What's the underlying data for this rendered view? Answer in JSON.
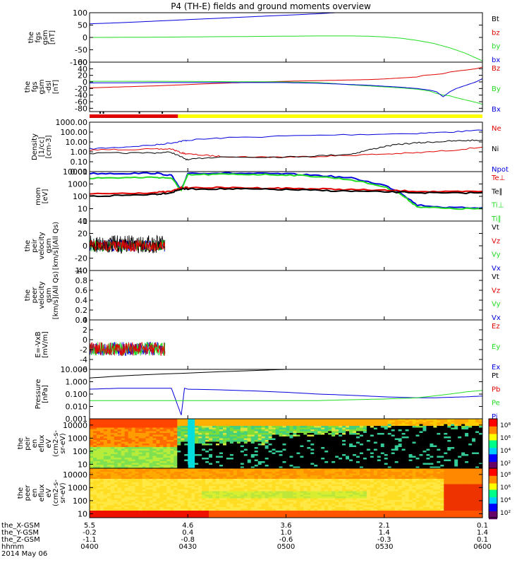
{
  "title": "P4 (TH-E) fields and ground moments overview",
  "colors": {
    "black": "#000000",
    "red": "#e00000",
    "green": "#22dd22",
    "blue": "#0000dd",
    "yellow": "#ffff00"
  },
  "chart_data": {
    "type": "line",
    "time_labels": [
      "0400",
      "0430",
      "0500",
      "0530",
      "0600"
    ],
    "time_range": [
      "0400",
      "0600"
    ],
    "footer": {
      "rows": [
        {
          "label": "the_X-GSM",
          "values": [
            "5.5",
            "4.6",
            "3.6",
            "2.1",
            "0.1"
          ]
        },
        {
          "label": "the_Y-GSM",
          "values": [
            "-0.2",
            "0.4",
            "1.0",
            "1.4",
            "1.4"
          ]
        },
        {
          "label": "the_Z-GSM",
          "values": [
            "-1.1",
            "-0.8",
            "-0.6",
            "-0.3",
            "0.1"
          ]
        },
        {
          "label": "hhmm",
          "values": [
            "0400",
            "0430",
            "0500",
            "0530",
            "0600"
          ]
        }
      ],
      "date": "2014 May 06"
    },
    "panels": [
      {
        "ylabel": [
          "the",
          "fgs",
          "gsm",
          "[nT]"
        ],
        "ylim": [
          -100,
          100
        ],
        "log": false,
        "ticks": [
          "100",
          "50",
          "0",
          "-50",
          "-100"
        ],
        "tick_vals": [
          100,
          50,
          0,
          -50,
          -100
        ],
        "legend": [
          {
            "name": "Bt",
            "color": "#000000"
          },
          {
            "name": "bz",
            "color": "#e00000"
          },
          {
            "name": "by",
            "color": "#22dd22"
          },
          {
            "name": "bx",
            "color": "#0000dd"
          }
        ],
        "series": [
          {
            "name": "bx",
            "color": "#0000dd",
            "x": [
              0,
              10,
              20,
              30,
              40,
              50,
              60,
              70,
              75,
              80
            ],
            "y": [
              55,
              60,
              66,
              72,
              78,
              84,
              90,
              96,
              100,
              105
            ]
          },
          {
            "name": "by",
            "color": "#22dd22",
            "x": [
              0,
              20,
              40,
              60,
              70,
              80,
              85,
              90,
              95,
              100,
              105,
              110,
              115,
              120
            ],
            "y": [
              0,
              1,
              3,
              5,
              6,
              6,
              5,
              2,
              -3,
              -12,
              -24,
              -42,
              -65,
              -95
            ]
          }
        ]
      },
      {
        "ylabel": [
          "the",
          "fgs",
          "gsm",
          "-dsl",
          "[nT]"
        ],
        "ylim": [
          -90,
          60
        ],
        "log": false,
        "ticks": [
          "60",
          "40",
          "20",
          "0",
          "-20",
          "-40",
          "-60",
          "-80"
        ],
        "tick_vals": [
          60,
          40,
          20,
          0,
          -20,
          -40,
          -60,
          -80
        ],
        "legend": [
          {
            "name": "Bz",
            "color": "#e00000"
          },
          {
            "name": "By",
            "color": "#22dd22"
          },
          {
            "name": "Bx",
            "color": "#0000dd"
          }
        ],
        "series": [
          {
            "name": "Bz",
            "color": "#e00000",
            "x": [
              0,
              10,
              20,
              30,
              40,
              50,
              60,
              70,
              75,
              80,
              85,
              90,
              95,
              100,
              102,
              105,
              108,
              110,
              113,
              115,
              118,
              120
            ],
            "y": [
              -18,
              -15,
              -12,
              -8,
              -4,
              -1,
              2,
              4,
              5,
              6,
              7,
              9,
              12,
              15,
              20,
              22,
              25,
              30,
              34,
              36,
              40,
              45
            ]
          },
          {
            "name": "By",
            "color": "#22dd22",
            "x": [
              0,
              20,
              40,
              60,
              70,
              75,
              80,
              85,
              90,
              95,
              100,
              104,
              106,
              108,
              110,
              112,
              115,
              118,
              120
            ],
            "y": [
              2,
              2,
              1,
              0,
              -2,
              -5,
              -9,
              -12,
              -15,
              -18,
              -22,
              -28,
              -35,
              -40,
              -42,
              -48,
              -55,
              -62,
              -68
            ]
          },
          {
            "name": "Bx",
            "color": "#0000dd",
            "x": [
              0,
              20,
              40,
              60,
              70,
              75,
              80,
              85,
              90,
              95,
              100,
              104,
              106,
              108,
              110,
              112,
              115,
              118,
              120
            ],
            "y": [
              -3,
              -2,
              -2,
              -2,
              -4,
              -6,
              -8,
              -10,
              -13,
              -16,
              -20,
              -25,
              -30,
              -45,
              -30,
              -20,
              -10,
              0,
              10
            ]
          }
        ]
      },
      {
        "ylabel": [
          "Density",
          "[1/cc]",
          "[cm-3]"
        ],
        "ylim": [
          0.01,
          1000
        ],
        "log": true,
        "ticks": [
          "1000.00",
          "100.00",
          "10.00",
          "1.00",
          "0.10",
          "0.01"
        ],
        "tick_vals": [
          1000,
          100,
          10,
          1,
          0.1,
          0.01
        ],
        "legend": [
          {
            "name": "Ne",
            "color": "#e00000"
          },
          {
            "name": "Ni",
            "color": "#000000"
          },
          {
            "name": "Npot",
            "color": "#0000dd"
          }
        ],
        "series": [
          {
            "name": "Npot",
            "color": "#0000dd",
            "x": [
              0,
              10,
              20,
              25,
              28,
              30,
              40,
              60,
              80,
              100,
              110,
              120
            ],
            "y": [
              2,
              3,
              5,
              8,
              12,
              15,
              25,
              40,
              55,
              75,
              100,
              150
            ]
          },
          {
            "name": "Ne",
            "color": "#e00000",
            "x": [
              0,
              10,
              20,
              25,
              28,
              30,
              35,
              40,
              50,
              60,
              70,
              80,
              90,
              100,
              110,
              120
            ],
            "y": [
              1.5,
              1.8,
              1.8,
              2,
              0.8,
              0.6,
              0.45,
              0.35,
              0.3,
              0.3,
              0.35,
              0.45,
              0.6,
              0.8,
              1.4,
              3
            ]
          },
          {
            "name": "Ni",
            "color": "#000000",
            "x": [
              0,
              10,
              20,
              25,
              28,
              30,
              35,
              40,
              50,
              60,
              70,
              80,
              85,
              90,
              95,
              100,
              105,
              110,
              115,
              120
            ],
            "y": [
              0.7,
              0.75,
              0.8,
              0.9,
              0.3,
              0.15,
              0.25,
              0.3,
              0.3,
              0.3,
              0.4,
              0.6,
              1.5,
              3.5,
              6,
              8,
              10,
              12,
              14,
              15
            ]
          }
        ]
      },
      {
        "ylabel": [
          "mom",
          "[eV]"
        ],
        "ylim": [
          1,
          10000
        ],
        "log": true,
        "ticks": [
          "10000",
          "1000",
          "100",
          "10",
          "1"
        ],
        "tick_vals": [
          10000,
          1000,
          100,
          10,
          1
        ],
        "legend": [
          {
            "name": "Te⊥",
            "color": "#e00000"
          },
          {
            "name": "Te∥",
            "color": "#000000"
          },
          {
            "name": "Ti⊥",
            "color": "#22dd22"
          },
          {
            "name": "Ti∥",
            "color": "#22dd22"
          }
        ],
        "series": [
          {
            "name": "Ti",
            "color": "#0000dd",
            "x": [
              0,
              10,
              20,
              25,
              28,
              30,
              40,
              50,
              60,
              70,
              80,
              90,
              95,
              100,
              110,
              120
            ],
            "y": [
              7000,
              7200,
              7500,
              5000,
              300,
              7500,
              7500,
              7000,
              6500,
              5000,
              3000,
              800,
              200,
              20,
              12,
              12
            ]
          },
          {
            "name": "TiG",
            "color": "#22dd22",
            "x": [
              0,
              10,
              20,
              25,
              28,
              30,
              40,
              50,
              60,
              70,
              80,
              90,
              95,
              100,
              110,
              120
            ],
            "y": [
              3000,
              3200,
              3500,
              3000,
              300,
              5500,
              6000,
              6000,
              5500,
              4000,
              2200,
              600,
              150,
              15,
              10,
              10
            ]
          },
          {
            "name": "Te",
            "color": "#e00000",
            "x": [
              0,
              10,
              20,
              25,
              28,
              30,
              40,
              50,
              60,
              70,
              80,
              90,
              100,
              110,
              120
            ],
            "y": [
              150,
              180,
              200,
              250,
              500,
              500,
              500,
              480,
              450,
              400,
              350,
              300,
              260,
              230,
              250
            ]
          },
          {
            "name": "TeK",
            "color": "#000000",
            "x": [
              0,
              10,
              20,
              25,
              28,
              30,
              40,
              50,
              60,
              70,
              80,
              90,
              100,
              110,
              120
            ],
            "y": [
              100,
              120,
              150,
              200,
              400,
              400,
              400,
              380,
              350,
              300,
              260,
              230,
              200,
              180,
              200
            ]
          }
        ]
      },
      {
        "ylabel": [
          "the",
          "peir",
          "velocity",
          "gsm",
          "[km/s](All Qs)"
        ],
        "ylim": [
          -40,
          40
        ],
        "log": false,
        "ticks": [
          "40",
          "20",
          "0",
          "-20",
          "-40"
        ],
        "tick_vals": [
          40,
          20,
          0,
          -20,
          -40
        ],
        "legend": [
          {
            "name": "Vt",
            "color": "#000000"
          },
          {
            "name": "Vz",
            "color": "#e00000"
          },
          {
            "name": "Vy",
            "color": "#22dd22"
          },
          {
            "name": "Vx",
            "color": "#0000dd"
          }
        ],
        "series": [],
        "noise_span": [
          0,
          23
        ]
      },
      {
        "ylabel": [
          "the",
          "peer",
          "velocity",
          "gsm",
          "[km/s](All Qs)"
        ],
        "ylim": [
          0,
          1
        ],
        "log": false,
        "ticks": [
          "1.0",
          "0.8",
          "0.6",
          "0.4",
          "0.2",
          "0.0"
        ],
        "tick_vals": [
          1,
          0.8,
          0.6,
          0.4,
          0.2,
          0
        ],
        "legend": [
          {
            "name": "Vt",
            "color": "#000000"
          },
          {
            "name": "Vz",
            "color": "#e00000"
          },
          {
            "name": "Vy",
            "color": "#22dd22"
          },
          {
            "name": "Vx",
            "color": "#0000dd"
          }
        ],
        "series": []
      },
      {
        "ylabel": [
          "E=-VxB",
          "[mV/m]"
        ],
        "ylim": [
          -6,
          4
        ],
        "log": false,
        "ticks": [
          "4",
          "2",
          "0",
          "-2",
          "-4",
          "-6"
        ],
        "tick_vals": [
          4,
          2,
          0,
          -2,
          -4,
          -6
        ],
        "legend": [
          {
            "name": "Ez",
            "color": "#e00000"
          },
          {
            "name": "Ey",
            "color": "#22dd22"
          },
          {
            "name": "Ex",
            "color": "#0000dd"
          }
        ],
        "series": [],
        "noise_span": [
          0,
          23
        ]
      },
      {
        "ylabel": [
          "Pressure",
          "[nPa]"
        ],
        "ylim": [
          0.001,
          10
        ],
        "log": true,
        "ticks": [
          "10.000",
          "1.000",
          "0.100",
          "0.010",
          "0.001"
        ],
        "tick_vals": [
          10,
          1,
          0.1,
          0.01,
          0.001
        ],
        "legend": [
          {
            "name": "Pt",
            "color": "#000000"
          },
          {
            "name": "Pb",
            "color": "#e00000"
          },
          {
            "name": "Pe",
            "color": "#22dd22"
          },
          {
            "name": "Pi",
            "color": "#0000dd"
          }
        ],
        "series": [
          {
            "name": "Pt",
            "color": "#000000",
            "x": [
              0,
              10,
              20,
              30,
              40,
              50,
              60,
              65,
              70,
              80
            ],
            "y": [
              2,
              3,
              4,
              5,
              6.5,
              8,
              10,
              11,
              13,
              15
            ]
          },
          {
            "name": "Pi",
            "color": "#0000dd",
            "x": [
              0,
              10,
              20,
              25,
              28,
              29,
              30,
              40,
              50,
              60,
              70,
              80,
              90,
              100,
              105,
              110,
              115,
              120
            ],
            "y": [
              0.25,
              0.3,
              0.3,
              0.3,
              0.002,
              0.3,
              0.25,
              0.22,
              0.18,
              0.14,
              0.1,
              0.08,
              0.06,
              0.05,
              0.05,
              0.055,
              0.06,
              0.07
            ]
          },
          {
            "name": "Pe",
            "color": "#22dd22",
            "x": [
              0,
              10,
              20,
              30,
              40,
              50,
              60,
              70,
              80,
              90,
              100,
              105,
              110,
              115,
              120
            ],
            "y": [
              0.03,
              0.03,
              0.03,
              0.03,
              0.03,
              0.03,
              0.03,
              0.03,
              0.035,
              0.04,
              0.05,
              0.07,
              0.1,
              0.15,
              0.2
            ]
          }
        ]
      },
      {
        "ylabel": [
          "the",
          "peir",
          "en",
          "eflux",
          "eV",
          "(cm2-s-",
          "sr-eV)"
        ],
        "ylim": [
          5,
          30000
        ],
        "log": true,
        "spectro": "ion",
        "ticks": [
          "10000",
          "1000",
          "100",
          "10"
        ],
        "tick_vals": [
          10000,
          1000,
          100,
          10
        ],
        "colorbar": [
          "10⁸",
          "10⁶",
          "10⁴",
          "10²"
        ],
        "legend": []
      },
      {
        "ylabel": [
          "the",
          "peer",
          "en",
          "eflux",
          "eV",
          "(cm2-s-",
          "sr-eV)"
        ],
        "ylim": [
          5,
          30000
        ],
        "log": true,
        "spectro": "electron",
        "ticks": [
          "10000",
          "1000",
          "100",
          "10"
        ],
        "tick_vals": [
          10000,
          1000,
          100,
          10
        ],
        "colorbar": [
          "10⁸",
          "10⁶",
          "10⁴",
          "10²"
        ],
        "legend": []
      }
    ]
  }
}
